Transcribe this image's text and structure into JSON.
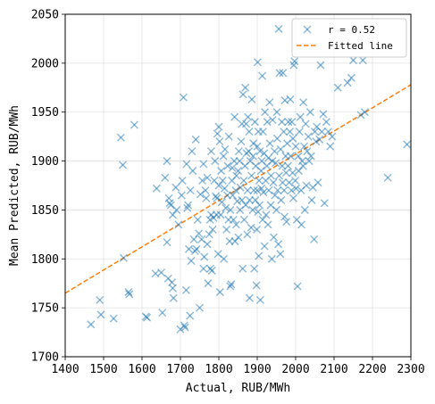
{
  "chart_data": {
    "type": "scatter",
    "xlabel": "Actual, RUB/MWh",
    "ylabel": "Mean Predicted, RUB/MWh",
    "xlim": [
      1400,
      2300
    ],
    "ylim": [
      1700,
      2050
    ],
    "xticks": [
      1400,
      1500,
      1600,
      1700,
      1800,
      1900,
      2000,
      2100,
      2200,
      2300
    ],
    "yticks": [
      1700,
      1750,
      1800,
      1850,
      1900,
      1950,
      2000,
      2050
    ],
    "grid": true,
    "legend_position": "top-right",
    "colors": {
      "scatter": "#1f77b4",
      "fit": "#ff7f0e"
    },
    "series": [
      {
        "name": "r = 0.52",
        "kind": "scatter",
        "marker": "x",
        "points": [
          [
            1467,
            1733
          ],
          [
            1490,
            1758
          ],
          [
            1493,
            1743
          ],
          [
            1526,
            1739
          ],
          [
            1545,
            1924
          ],
          [
            1550,
            1896
          ],
          [
            1552,
            1801
          ],
          [
            1565,
            1766
          ],
          [
            1567,
            1764
          ],
          [
            1580,
            1937
          ],
          [
            1610,
            1741
          ],
          [
            1613,
            1740
          ],
          [
            1635,
            1785
          ],
          [
            1638,
            1872
          ],
          [
            1650,
            1786
          ],
          [
            1653,
            1745
          ],
          [
            1660,
            1883
          ],
          [
            1665,
            1817
          ],
          [
            1665,
            1900
          ],
          [
            1668,
            1780
          ],
          [
            1670,
            1862
          ],
          [
            1672,
            1857
          ],
          [
            1675,
            1855
          ],
          [
            1678,
            1776
          ],
          [
            1680,
            1770
          ],
          [
            1680,
            1845
          ],
          [
            1682,
            1760
          ],
          [
            1688,
            1873
          ],
          [
            1690,
            1850
          ],
          [
            1695,
            1835
          ],
          [
            1700,
            1728
          ],
          [
            1703,
            1865
          ],
          [
            1705,
            1880
          ],
          [
            1708,
            1965
          ],
          [
            1710,
            1732
          ],
          [
            1712,
            1730
          ],
          [
            1715,
            1768
          ],
          [
            1716,
            1897
          ],
          [
            1718,
            1852
          ],
          [
            1720,
            1855
          ],
          [
            1722,
            1810
          ],
          [
            1725,
            1742
          ],
          [
            1726,
            1870
          ],
          [
            1728,
            1798
          ],
          [
            1730,
            1910
          ],
          [
            1732,
            1890
          ],
          [
            1735,
            1820
          ],
          [
            1738,
            1808
          ],
          [
            1740,
            1922
          ],
          [
            1742,
            1810
          ],
          [
            1745,
            1840
          ],
          [
            1748,
            1826
          ],
          [
            1750,
            1750
          ],
          [
            1752,
            1866
          ],
          [
            1755,
            1820
          ],
          [
            1757,
            1880
          ],
          [
            1760,
            1790
          ],
          [
            1760,
            1897
          ],
          [
            1762,
            1802
          ],
          [
            1765,
            1870
          ],
          [
            1767,
            1862
          ],
          [
            1770,
            1815
          ],
          [
            1770,
            1883
          ],
          [
            1772,
            1775
          ],
          [
            1775,
            1825
          ],
          [
            1777,
            1840
          ],
          [
            1778,
            1790
          ],
          [
            1780,
            1845
          ],
          [
            1780,
            1910
          ],
          [
            1782,
            1788
          ],
          [
            1784,
            1830
          ],
          [
            1786,
            1842
          ],
          [
            1788,
            1880
          ],
          [
            1790,
            1900
          ],
          [
            1792,
            1864
          ],
          [
            1794,
            1845
          ],
          [
            1795,
            1862
          ],
          [
            1796,
            1928
          ],
          [
            1798,
            1805
          ],
          [
            1800,
            1875
          ],
          [
            1800,
            1935
          ],
          [
            1802,
            1920
          ],
          [
            1803,
            1766
          ],
          [
            1805,
            1845
          ],
          [
            1806,
            1890
          ],
          [
            1808,
            1858
          ],
          [
            1810,
            1880
          ],
          [
            1812,
            1905
          ],
          [
            1813,
            1800
          ],
          [
            1815,
            1872
          ],
          [
            1816,
            1912
          ],
          [
            1818,
            1852
          ],
          [
            1820,
            1830
          ],
          [
            1822,
            1865
          ],
          [
            1823,
            1895
          ],
          [
            1825,
            1840
          ],
          [
            1826,
            1925
          ],
          [
            1828,
            1818
          ],
          [
            1830,
            1850
          ],
          [
            1830,
            1772
          ],
          [
            1832,
            1774
          ],
          [
            1834,
            1880
          ],
          [
            1835,
            1893
          ],
          [
            1836,
            1865
          ],
          [
            1838,
            1840
          ],
          [
            1840,
            1900
          ],
          [
            1841,
            1945
          ],
          [
            1842,
            1818
          ],
          [
            1844,
            1870
          ],
          [
            1845,
            1835
          ],
          [
            1846,
            1885
          ],
          [
            1848,
            1859
          ],
          [
            1850,
            1890
          ],
          [
            1851,
            1822
          ],
          [
            1852,
            1910
          ],
          [
            1854,
            1900
          ],
          [
            1855,
            1850
          ],
          [
            1856,
            1873
          ],
          [
            1858,
            1920
          ],
          [
            1860,
            1938
          ],
          [
            1860,
            1860
          ],
          [
            1862,
            1790
          ],
          [
            1863,
            1968
          ],
          [
            1865,
            1880
          ],
          [
            1866,
            1840
          ],
          [
            1868,
            1895
          ],
          [
            1869,
            1975
          ],
          [
            1870,
            1855
          ],
          [
            1871,
            1938
          ],
          [
            1872,
            1908
          ],
          [
            1874,
            1825
          ],
          [
            1875,
            1870
          ],
          [
            1876,
            1945
          ],
          [
            1878,
            1910
          ],
          [
            1879,
            1930
          ],
          [
            1880,
            1860
          ],
          [
            1880,
            1760
          ],
          [
            1882,
            1900
          ],
          [
            1884,
            1832
          ],
          [
            1885,
            1885
          ],
          [
            1886,
            1963
          ],
          [
            1888,
            1850
          ],
          [
            1889,
            1905
          ],
          [
            1890,
            1918
          ],
          [
            1891,
            1870
          ],
          [
            1892,
            1790
          ],
          [
            1894,
            1940
          ],
          [
            1895,
            1860
          ],
          [
            1896,
            1895
          ],
          [
            1898,
            1773
          ],
          [
            1899,
            1830
          ],
          [
            1900,
            1870
          ],
          [
            1900,
            1915
          ],
          [
            1901,
            2001
          ],
          [
            1902,
            1848
          ],
          [
            1903,
            1930
          ],
          [
            1904,
            1803
          ],
          [
            1905,
            1880
          ],
          [
            1906,
            1855
          ],
          [
            1907,
            1910
          ],
          [
            1908,
            1758
          ],
          [
            1910,
            1890
          ],
          [
            1911,
            1872
          ],
          [
            1912,
            1900
          ],
          [
            1913,
            1987
          ],
          [
            1914,
            1840
          ],
          [
            1915,
            1930
          ],
          [
            1916,
            1868
          ],
          [
            1918,
            1908
          ],
          [
            1919,
            1813
          ],
          [
            1920,
            1950
          ],
          [
            1922,
            1880
          ],
          [
            1923,
            1845
          ],
          [
            1925,
            1895
          ],
          [
            1926,
            1940
          ],
          [
            1928,
            1835
          ],
          [
            1929,
            1903
          ],
          [
            1930,
            1870
          ],
          [
            1932,
            1960
          ],
          [
            1933,
            1918
          ],
          [
            1935,
            1855
          ],
          [
            1936,
            1885
          ],
          [
            1938,
            1800
          ],
          [
            1939,
            1900
          ],
          [
            1940,
            1942
          ],
          [
            1942,
            1878
          ],
          [
            1943,
            1822
          ],
          [
            1945,
            1910
          ],
          [
            1946,
            1865
          ],
          [
            1948,
            1898
          ],
          [
            1950,
            1850
          ],
          [
            1951,
            1950
          ],
          [
            1952,
            1923
          ],
          [
            1953,
            1870
          ],
          [
            1955,
            1815
          ],
          [
            1956,
            2035
          ],
          [
            1957,
            1885
          ],
          [
            1958,
            1990
          ],
          [
            1960,
            1805
          ],
          [
            1961,
            1912
          ],
          [
            1962,
            1860
          ],
          [
            1964,
            1940
          ],
          [
            1965,
            1895
          ],
          [
            1966,
            1878
          ],
          [
            1967,
            1990
          ],
          [
            1969,
            1930
          ],
          [
            1970,
            1870
          ],
          [
            1971,
            1843
          ],
          [
            1972,
            1962
          ],
          [
            1974,
            1905
          ],
          [
            1975,
            1888
          ],
          [
            1976,
            1838
          ],
          [
            1978,
            1918
          ],
          [
            1980,
            1895
          ],
          [
            1981,
            1940
          ],
          [
            1983,
            1878
          ],
          [
            1985,
            1930
          ],
          [
            1986,
            1963
          ],
          [
            1987,
            1905
          ],
          [
            1989,
            1870
          ],
          [
            1990,
            1940
          ],
          [
            1992,
            1888
          ],
          [
            1993,
            1923
          ],
          [
            1994,
            1862
          ],
          [
            1995,
            1998
          ],
          [
            1997,
            2002
          ],
          [
            1999,
            1880
          ],
          [
            2000,
            1915
          ],
          [
            2001,
            1872
          ],
          [
            2003,
            1840
          ],
          [
            2005,
            1772
          ],
          [
            2007,
            1905
          ],
          [
            2008,
            1890
          ],
          [
            2010,
            1930
          ],
          [
            2012,
            1945
          ],
          [
            2014,
            1870
          ],
          [
            2015,
            1835
          ],
          [
            2017,
            1900
          ],
          [
            2019,
            1895
          ],
          [
            2020,
            1960
          ],
          [
            2022,
            1915
          ],
          [
            2024,
            1850
          ],
          [
            2026,
            1938
          ],
          [
            2028,
            1875
          ],
          [
            2030,
            1910
          ],
          [
            2033,
            1925
          ],
          [
            2035,
            1900
          ],
          [
            2038,
            1950
          ],
          [
            2040,
            1905
          ],
          [
            2042,
            1860
          ],
          [
            2045,
            1873
          ],
          [
            2048,
            1820
          ],
          [
            2050,
            1930
          ],
          [
            2053,
            1920
          ],
          [
            2055,
            1935
          ],
          [
            2058,
            1878
          ],
          [
            2062,
            1922
          ],
          [
            2065,
            1998
          ],
          [
            2068,
            1930
          ],
          [
            2072,
            1948
          ],
          [
            2075,
            1857
          ],
          [
            2080,
            1940
          ],
          [
            2085,
            1930
          ],
          [
            2090,
            1915
          ],
          [
            2095,
            1925
          ],
          [
            2110,
            1975
          ],
          [
            2135,
            1980
          ],
          [
            2145,
            1985
          ],
          [
            2150,
            2003
          ],
          [
            2170,
            1947
          ],
          [
            2175,
            2003
          ],
          [
            2180,
            1950
          ],
          [
            2240,
            1883
          ],
          [
            2290,
            1917
          ]
        ]
      },
      {
        "name": "Fitted line",
        "kind": "line",
        "style": "dashed",
        "x": [
          1400,
          2300
        ],
        "y": [
          1765,
          1978
        ]
      }
    ]
  },
  "legend": {
    "scatter_label": "r = 0.52",
    "line_label": "Fitted line"
  }
}
